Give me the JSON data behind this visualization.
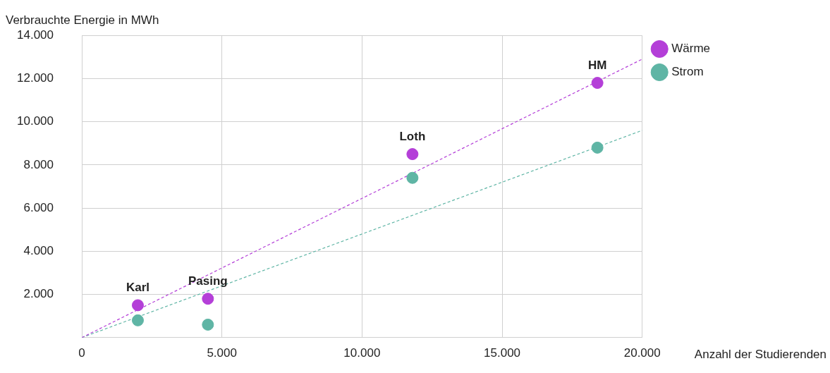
{
  "chart_data": {
    "type": "scatter",
    "ylabel": "Verbrauchte Energie in MWh",
    "xlabel": "Anzahl der Studierenden",
    "xlim": [
      0,
      20000
    ],
    "xticks": [
      0,
      {
        "value": 5000,
        "label": "5.000"
      },
      {
        "value": 10000,
        "label": "10.000"
      },
      {
        "value": 15000,
        "label": "15.000"
      },
      {
        "value": 20000,
        "label": "20.000"
      }
    ],
    "ylim": [
      0,
      14000
    ],
    "yticks": [
      {
        "value": 0,
        "label": null
      },
      {
        "value": 2000,
        "label": "2.000"
      },
      {
        "value": 4000,
        "label": "4.000"
      },
      {
        "value": 6000,
        "label": "6.000"
      },
      {
        "value": 8000,
        "label": "8.000"
      },
      {
        "value": 10000,
        "label": "10.000"
      },
      {
        "value": 12000,
        "label": "12.000"
      },
      {
        "value": 14000,
        "label": "14.000"
      }
    ],
    "grid": true,
    "legend": "top right",
    "marker": "circle",
    "series": [
      {
        "name": "Wärme",
        "color": "#b43fd8",
        "x": [
          2000,
          4500,
          11800,
          18400
        ],
        "values": [
          1500,
          1800,
          8500,
          11800
        ]
      },
      {
        "name": "Strom",
        "color": "#5fb5a5",
        "x": [
          2000,
          4500,
          11800,
          18400
        ],
        "values": [
          800,
          600,
          7400,
          8800
        ]
      },
      {
        "type": "line",
        "line_style": "dashed",
        "marker": "none",
        "color": "#b43fd8",
        "x": [
          0,
          20000
        ],
        "values": [
          0,
          12900
        ]
      },
      {
        "type": "line",
        "line_style": "dashed",
        "marker": "none",
        "color": "#5fb5a5",
        "x": [
          0,
          20000
        ],
        "values": [
          0,
          9600
        ]
      }
    ],
    "annotations": [
      {
        "text": "Karl",
        "x": 2000,
        "y": 1500
      },
      {
        "text": "Pasing",
        "x": 4500,
        "y": 1800
      },
      {
        "text": "Loth",
        "x": 11800,
        "y": 8500
      },
      {
        "text": "HM",
        "x": 18400,
        "y": 11800
      }
    ]
  }
}
